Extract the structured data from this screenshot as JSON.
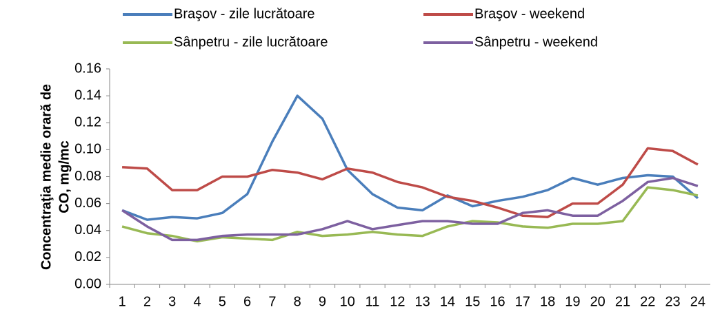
{
  "chart_data": {
    "type": "line",
    "ylabel": [
      "Concentraţia medie orară de",
      "CO, mg/mc"
    ],
    "categories": [
      "1",
      "2",
      "3",
      "4",
      "5",
      "6",
      "7",
      "8",
      "9",
      "10",
      "11",
      "12",
      "13",
      "14",
      "15",
      "16",
      "17",
      "18",
      "19",
      "20",
      "21",
      "22",
      "23",
      "24"
    ],
    "series": [
      {
        "name": "Braşov - zile lucrătoare",
        "color": "#4a7ebb",
        "values": [
          0.055,
          0.048,
          0.05,
          0.049,
          0.053,
          0.067,
          0.106,
          0.14,
          0.123,
          0.085,
          0.067,
          0.057,
          0.055,
          0.066,
          0.058,
          0.062,
          0.065,
          0.07,
          0.079,
          0.074,
          0.079,
          0.081,
          0.08,
          0.064
        ]
      },
      {
        "name": "Braşov - weekend",
        "color": "#be4b48",
        "values": [
          0.087,
          0.086,
          0.07,
          0.07,
          0.08,
          0.08,
          0.085,
          0.083,
          0.078,
          0.086,
          0.083,
          0.076,
          0.072,
          0.065,
          0.062,
          0.057,
          0.051,
          0.05,
          0.06,
          0.06,
          0.074,
          0.101,
          0.099,
          0.089
        ]
      },
      {
        "name": "Sânpetru - zile lucrătoare",
        "color": "#98b954",
        "values": [
          0.043,
          0.038,
          0.036,
          0.032,
          0.035,
          0.034,
          0.033,
          0.039,
          0.036,
          0.037,
          0.039,
          0.037,
          0.036,
          0.043,
          0.047,
          0.046,
          0.043,
          0.042,
          0.045,
          0.045,
          0.047,
          0.072,
          0.07,
          0.066
        ]
      },
      {
        "name": "Sânpetru - weekend",
        "color": "#7d60a0",
        "values": [
          0.055,
          0.043,
          0.033,
          0.033,
          0.036,
          0.037,
          0.037,
          0.037,
          0.041,
          0.047,
          0.041,
          0.044,
          0.047,
          0.047,
          0.045,
          0.045,
          0.053,
          0.055,
          0.051,
          0.051,
          0.062,
          0.076,
          0.079,
          0.073
        ]
      }
    ],
    "ylim": [
      0,
      0.16
    ],
    "yticks": [
      {
        "value": 0,
        "label": "0.00"
      },
      {
        "value": 0.02,
        "label": "0.02"
      },
      {
        "value": 0.04,
        "label": "0.04"
      },
      {
        "value": 0.06,
        "label": "0.06"
      },
      {
        "value": 0.08,
        "label": "0.08"
      },
      {
        "value": 0.1,
        "label": "0.10"
      },
      {
        "value": 0.12,
        "label": "0.12"
      },
      {
        "value": 0.14,
        "label": "0.14"
      },
      {
        "value": 0.16,
        "label": "0.16"
      }
    ],
    "grid": false,
    "legend": "top"
  }
}
